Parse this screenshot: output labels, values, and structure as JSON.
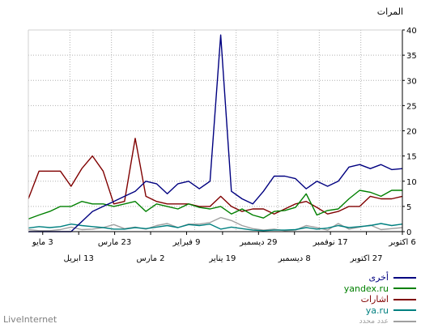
{
  "chart_data": {
    "type": "line",
    "ylabel": "المرات",
    "ylim": [
      0,
      40
    ],
    "yticks": [
      0,
      5,
      10,
      15,
      20,
      25,
      30,
      35,
      40
    ],
    "grid": true,
    "x_labels_upper": [
      "6 اكتوبر",
      "17 نوفمبر",
      "29 ديسمبر",
      "9 فبراير",
      "23 مارس",
      "3 مايو"
    ],
    "x_labels_lower": [
      "27 اكتوبر",
      "8 ديسمبر",
      "19 يناير",
      "2 مارس",
      "13 ابريل"
    ],
    "legend_position": "bottom-right",
    "series": [
      {
        "name": "أخرى",
        "color": "#000080",
        "values": [
          12.5,
          12.3,
          13.3,
          12.5,
          13.3,
          12.8,
          10,
          9,
          10,
          8.5,
          10.5,
          11,
          11,
          8,
          5.5,
          6.5,
          8,
          39,
          10,
          8.5,
          10,
          9.5,
          7.5,
          9.5,
          10,
          8,
          7,
          6,
          5,
          4,
          2,
          0,
          0,
          0,
          0,
          0
        ]
      },
      {
        "name": "yandex.ru",
        "color": "#008000",
        "values": [
          8.2,
          8.2,
          7,
          7.8,
          8.2,
          6.5,
          4.5,
          4.2,
          3.3,
          7.5,
          4.8,
          4.2,
          4,
          2.7,
          3.3,
          4.5,
          3.5,
          5,
          4.5,
          4.8,
          5.5,
          4.5,
          5,
          5.5,
          4,
          6,
          5.5,
          5,
          5.5,
          5.5,
          6,
          5,
          5,
          4,
          3.3,
          2.5
        ]
      },
      {
        "name": "اشارات",
        "color": "#800000",
        "values": [
          7,
          6.5,
          6.5,
          7,
          5,
          5,
          4,
          3.5,
          4.8,
          6,
          5.5,
          4.5,
          3.5,
          4.5,
          4.5,
          4,
          5,
          7,
          5,
          5,
          5.5,
          5.5,
          5.5,
          6,
          7,
          18.5,
          6,
          5.5,
          12,
          15,
          12.5,
          9,
          12,
          12,
          12,
          6.5
        ]
      },
      {
        "name": "ya.ru",
        "color": "#008080",
        "values": [
          1.5,
          1.2,
          1.6,
          1.2,
          1.0,
          0.8,
          1.2,
          0.7,
          0.5,
          0.8,
          0.4,
          0.3,
          0.3,
          0.2,
          0.3,
          0.6,
          0.9,
          0.5,
          1.5,
          1.2,
          1.4,
          0.8,
          1.2,
          0.9,
          0.6,
          0.8,
          0.5,
          0.5,
          0.8,
          1,
          1.2,
          1.5,
          1,
          0.8,
          1,
          0.7
        ]
      },
      {
        "name": "عدد محدد",
        "color": "#a0a0a0",
        "values": [
          0.8,
          0.6,
          0.4,
          1.3,
          0.9,
          0.5,
          1.6,
          0.3,
          0.8,
          1.2,
          0.3,
          0.2,
          0.5,
          0.3,
          0.6,
          1.2,
          2.2,
          2.8,
          1.8,
          1.5,
          1.5,
          0.8,
          1.6,
          1.2,
          0.5,
          0.9,
          0.6,
          1.4,
          0.8,
          0.5,
          0.4,
          0.9,
          0.4,
          0.2,
          0.2,
          0.4
        ]
      }
    ]
  },
  "footer": {
    "brand": "LiveInternet"
  }
}
